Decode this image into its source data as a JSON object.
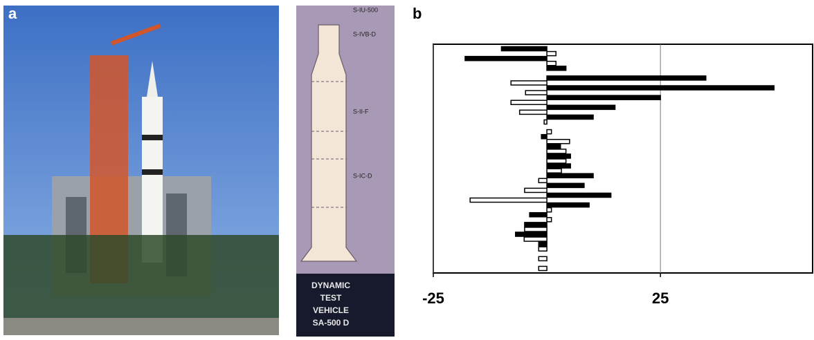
{
  "panels": {
    "a": "a",
    "b": "b"
  },
  "diagram": {
    "labels": [
      "S-IU-500",
      "S-IVB-D",
      "S-II-F",
      "S-IC-D"
    ],
    "caption": [
      "DYNAMIC",
      "TEST",
      "VEHICLE",
      "SA-500 D"
    ]
  },
  "chart_data": {
    "type": "bar",
    "orientation": "horizontal",
    "categories": [
      null,
      null,
      null,
      null,
      null,
      null,
      null,
      null,
      null,
      null,
      null,
      null,
      null,
      null,
      null,
      null,
      null,
      null,
      null,
      null,
      null,
      null,
      null
    ],
    "series": [
      {
        "color": "#000000",
        "values": [
          -10,
          -18,
          4.2,
          35,
          50,
          25,
          15,
          10.2,
          null,
          -1.2,
          3,
          5.2,
          5.2,
          10.2,
          8.2,
          14.1,
          9.3,
          -3.8,
          -4.9,
          -6.9,
          -1.8,
          null,
          null
        ]
      },
      {
        "color": "#ffffff",
        "values": [
          2,
          2,
          null,
          -7.9,
          -4.7,
          -7.9,
          -6,
          -0.6,
          1,
          5,
          4.2,
          4.2,
          3.2,
          -1.8,
          -4.9,
          -16.9,
          1,
          1,
          -4.9,
          -5,
          -1.8,
          -1.8,
          -1.8
        ]
      }
    ],
    "xlim": [
      -25,
      58.5
    ],
    "xticks": [
      -25,
      25
    ],
    "grid": true
  }
}
